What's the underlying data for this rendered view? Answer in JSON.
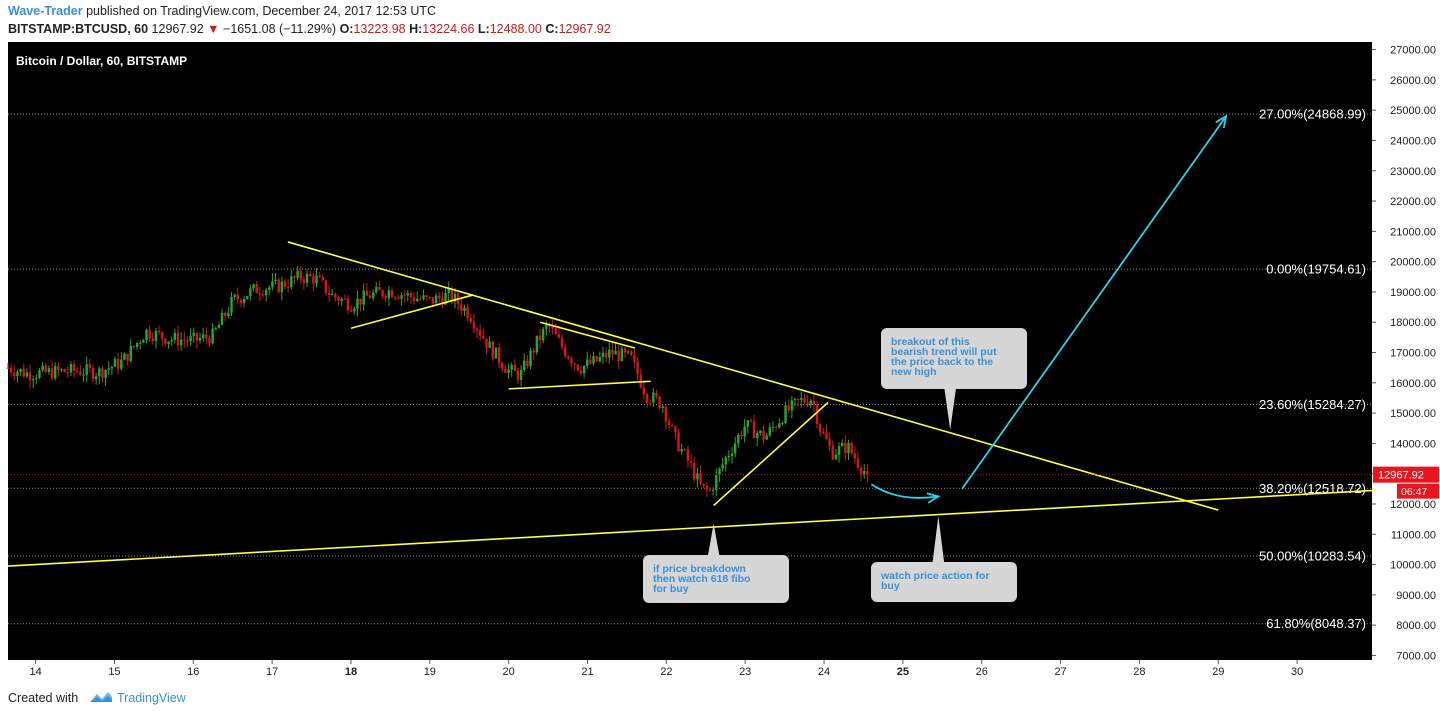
{
  "header": {
    "author": "Wave-Trader",
    "published": "published on TradingView.com, December 24, 2017 12:53 UTC",
    "symbol": "BITSTAMP:BTCUSD, 60",
    "price": "12967.92",
    "change": "−1651.08 (−11.29%)",
    "o_label": "O:",
    "o_value": "13223.98",
    "h_label": "H:",
    "h_value": "13224.66",
    "l_label": "L:",
    "l_value": "12488.00",
    "c_label": "C:",
    "c_value": "12967.92"
  },
  "footer": {
    "created_with": "Created with",
    "brand": "TradingView"
  },
  "colors": {
    "background": "#000000",
    "up": "#26a82f",
    "down": "#d3171f",
    "trendline": "#ffff3a",
    "projection": "#29d3e8",
    "note_text": "#3a8fd9",
    "note_box": "#d6d6d6"
  },
  "chart_data": {
    "type": "candlestick",
    "title": "Bitcoin / Dollar, 60, BITSTAMP",
    "x_ticks": [
      {
        "label": "14",
        "x": 14
      },
      {
        "label": "15",
        "x": 15
      },
      {
        "label": "16",
        "x": 16
      },
      {
        "label": "17",
        "x": 17
      },
      {
        "label": "18",
        "x": 18,
        "bold": true
      },
      {
        "label": "19",
        "x": 19
      },
      {
        "label": "20",
        "x": 20
      },
      {
        "label": "21",
        "x": 21
      },
      {
        "label": "22",
        "x": 22
      },
      {
        "label": "23",
        "x": 23
      },
      {
        "label": "24",
        "x": 24
      },
      {
        "label": "25",
        "x": 25,
        "bold": true
      },
      {
        "label": "26",
        "x": 26
      },
      {
        "label": "27",
        "x": 27
      },
      {
        "label": "28",
        "x": 28
      },
      {
        "label": "29",
        "x": 29
      },
      {
        "label": "30",
        "x": 30
      }
    ],
    "x_range": [
      13.65,
      30.95
    ],
    "y_range": [
      6850,
      27250
    ],
    "y_ticks": [
      7000,
      8000,
      9000,
      10000,
      11000,
      12000,
      13000,
      14000,
      15000,
      16000,
      17000,
      18000,
      19000,
      20000,
      21000,
      22000,
      23000,
      24000,
      25000,
      26000,
      27000
    ],
    "y_tick_labels": [
      "7000.00",
      "8000.00",
      "9000.00",
      "10000.00",
      "11000.00",
      "12000.00",
      "13000.00",
      "14000.00",
      "15000.00",
      "16000.00",
      "17000.00",
      "18000.00",
      "19000.00",
      "20000.00",
      "21000.00",
      "22000.00",
      "23000.00",
      "24000.00",
      "25000.00",
      "26000.00",
      "27000.00"
    ],
    "price_path": [
      [
        13.65,
        16500
      ],
      [
        13.9,
        16300
      ],
      [
        14.2,
        16350
      ],
      [
        14.5,
        16400
      ],
      [
        14.8,
        16350
      ],
      [
        15.1,
        16700
      ],
      [
        15.4,
        17700
      ],
      [
        15.7,
        17450
      ],
      [
        16.0,
        17400
      ],
      [
        16.25,
        17550
      ],
      [
        16.5,
        18700
      ],
      [
        16.8,
        19100
      ],
      [
        17.1,
        19200
      ],
      [
        17.35,
        19500
      ],
      [
        17.55,
        19450
      ],
      [
        17.75,
        18900
      ],
      [
        18.0,
        18600
      ],
      [
        18.25,
        18900
      ],
      [
        18.5,
        19050
      ],
      [
        18.75,
        18850
      ],
      [
        19.0,
        18700
      ],
      [
        19.25,
        18900
      ],
      [
        19.5,
        18300
      ],
      [
        19.75,
        17200
      ],
      [
        20.0,
        16400
      ],
      [
        20.15,
        16250
      ],
      [
        20.35,
        17300
      ],
      [
        20.5,
        17900
      ],
      [
        20.7,
        17100
      ],
      [
        20.9,
        16500
      ],
      [
        21.1,
        16700
      ],
      [
        21.3,
        17000
      ],
      [
        21.55,
        16800
      ],
      [
        21.75,
        15600
      ],
      [
        21.95,
        15300
      ],
      [
        22.1,
        14200
      ],
      [
        22.3,
        13300
      ],
      [
        22.45,
        12500
      ],
      [
        22.55,
        12400
      ],
      [
        22.75,
        13500
      ],
      [
        23.0,
        14600
      ],
      [
        23.25,
        14200
      ],
      [
        23.5,
        15000
      ],
      [
        23.7,
        15400
      ],
      [
        23.85,
        15500
      ],
      [
        23.95,
        14500
      ],
      [
        24.1,
        13700
      ],
      [
        24.3,
        13900
      ],
      [
        24.45,
        13300
      ],
      [
        24.55,
        12968
      ]
    ],
    "price_noise": 500,
    "trendlines": [
      {
        "name": "bearish-trendline",
        "from": [
          17.2,
          20650
        ],
        "to": [
          29.0,
          11800
        ]
      },
      {
        "name": "support-trendline",
        "from": [
          13.65,
          9950
        ],
        "to": [
          31.0,
          12450
        ]
      },
      {
        "name": "rising-wedge-upper",
        "from": [
          18.0,
          17800
        ],
        "to": [
          19.55,
          18900
        ]
      },
      {
        "name": "triangle-upper",
        "from": [
          20.4,
          18000
        ],
        "to": [
          21.6,
          17150
        ]
      },
      {
        "name": "triangle-lower",
        "from": [
          20.0,
          15800
        ],
        "to": [
          21.8,
          16050
        ]
      },
      {
        "name": "recovery-trendline",
        "from": [
          22.6,
          11950
        ],
        "to": [
          24.05,
          15350
        ]
      }
    ],
    "projections": [
      {
        "name": "pullback-arrow",
        "path": [
          [
            24.6,
            12650
          ],
          [
            24.95,
            12050
          ],
          [
            25.45,
            12250
          ]
        ]
      },
      {
        "name": "breakout-arrow",
        "path": [
          [
            25.75,
            12500
          ],
          [
            29.1,
            24800
          ]
        ]
      }
    ],
    "fib_levels": [
      {
        "label": "27.00%(24868.99)",
        "value": 24868.99
      },
      {
        "label": "0.00%(19754.61)",
        "value": 19754.61
      },
      {
        "label": "23.60%(15284.27)",
        "value": 15284.27
      },
      {
        "label": "38.20%(12518.72)",
        "value": 12518.72
      },
      {
        "label": "50.00%(10283.54)",
        "value": 10283.54
      },
      {
        "label": "61.80%(8048.37)",
        "value": 8048.37
      }
    ],
    "last_price": {
      "label": "12967.92",
      "value": 12967.92
    },
    "countdown": "06:47",
    "annotations": [
      {
        "name": "note-breakout",
        "text": [
          "breakout of this",
          "bearish trend will put",
          "the price back to the",
          "new high"
        ],
        "pointer": [
          25.6,
          14450
        ]
      },
      {
        "name": "note-breakdown",
        "text": [
          "if price breakdown",
          "then watch 618 fibo",
          "for buy"
        ],
        "pointer": [
          22.6,
          11350
        ]
      },
      {
        "name": "note-watch-buy",
        "text": [
          "watch price action for",
          "buy"
        ],
        "pointer": [
          25.45,
          11600
        ]
      }
    ]
  }
}
